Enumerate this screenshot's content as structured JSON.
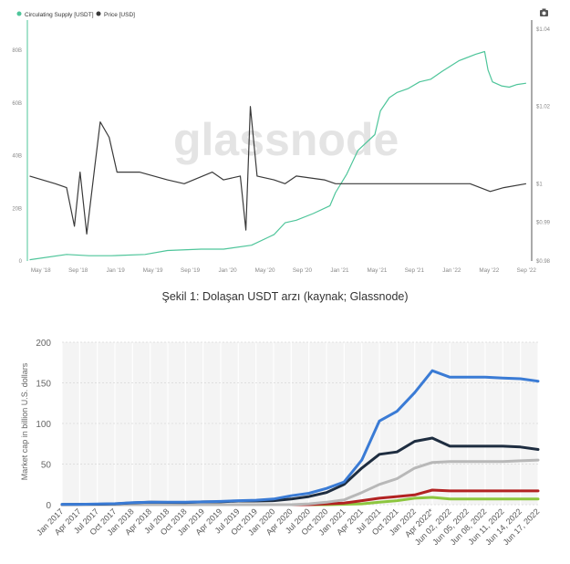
{
  "figure1": {
    "legend": [
      {
        "label": "Circulating Supply [USDT]",
        "color": "#4ec59a"
      },
      {
        "label": "Price [USD]",
        "color": "#3a3a3a"
      }
    ],
    "watermark": "glassnode",
    "camera_icon": "camera-icon",
    "caption": "Şekil 1: Dolaşan USDT arzı (kaynak; Glassnode)"
  },
  "figure2": {
    "grid_background": "#f4f4f4"
  },
  "chart_data": [
    {
      "type": "line",
      "legend_position": "top-left",
      "x_tick_labels": [
        "May '18",
        "Sep '18",
        "Jan '19",
        "May '19",
        "Sep '19",
        "Jan '20",
        "May '20",
        "Sep '20",
        "Jan '21",
        "May '21",
        "Sep '21",
        "Jan '22",
        "May '22",
        "Sep '22"
      ],
      "y_left_ticks": [
        "0",
        "20B",
        "40B",
        "60B",
        "80B"
      ],
      "y_right_ticks": [
        "$0.98",
        "$0.99",
        "$1",
        "$1.02",
        "$1.04"
      ],
      "y_left_lim": [
        0,
        88
      ],
      "y_right_lim": [
        0.98,
        1.04
      ],
      "x_lim": [
        2018.25,
        2022.75
      ],
      "grid": false,
      "series": [
        {
          "name": "Circulating Supply [USDT]",
          "axis": "left",
          "color": "#4ec59a",
          "x": [
            2018.27,
            2018.6,
            2018.8,
            2019.0,
            2019.3,
            2019.5,
            2019.8,
            2020.0,
            2020.25,
            2020.4,
            2020.45,
            2020.55,
            2020.65,
            2020.8,
            2020.95,
            2021.0,
            2021.1,
            2021.2,
            2021.35,
            2021.4,
            2021.48,
            2021.55,
            2021.65,
            2021.75,
            2021.85,
            2021.95,
            2022.1,
            2022.25,
            2022.33,
            2022.36,
            2022.4,
            2022.48,
            2022.55,
            2022.62,
            2022.7
          ],
          "y": [
            0.5,
            2.5,
            2.0,
            2.0,
            2.5,
            4.0,
            4.5,
            4.5,
            6.0,
            9.0,
            10.0,
            14.5,
            15.5,
            18.0,
            21.0,
            26.0,
            33.0,
            42.0,
            48.0,
            57.0,
            62.0,
            64.0,
            65.5,
            68.0,
            69.0,
            72.0,
            76.0,
            78.5,
            79.5,
            72.5,
            68.0,
            66.5,
            66.0,
            67.0,
            67.5
          ]
        },
        {
          "name": "Price [USD]",
          "axis": "right",
          "color": "#3a3a3a",
          "x": [
            2018.27,
            2018.5,
            2018.6,
            2018.67,
            2018.72,
            2018.78,
            2018.85,
            2018.9,
            2018.98,
            2019.05,
            2019.25,
            2019.5,
            2019.65,
            2019.9,
            2020.0,
            2020.15,
            2020.2,
            2020.24,
            2020.3,
            2020.45,
            2020.55,
            2020.65,
            2020.9,
            2021.0,
            2021.3,
            2021.5,
            2022.0,
            2022.2,
            2022.38,
            2022.5,
            2022.7
          ],
          "y": [
            1.002,
            1.0,
            0.999,
            0.989,
            1.003,
            0.987,
            1.004,
            1.016,
            1.012,
            1.003,
            1.003,
            1.001,
            1.0,
            1.003,
            1.001,
            1.002,
            0.988,
            1.02,
            1.002,
            1.001,
            1.0,
            1.002,
            1.001,
            1.0,
            1.0,
            1.0,
            1.0,
            1.0,
            0.998,
            0.999,
            1.0
          ]
        }
      ]
    },
    {
      "type": "line",
      "ylabel": "Market cap in billion U.S. dollars",
      "y_ticks": [
        0,
        50,
        100,
        150,
        200
      ],
      "ylim": [
        0,
        200
      ],
      "grid": true,
      "x_tick_labels": [
        "Jan 2017",
        "Apr 2017",
        "Jul 2017",
        "Oct 2017",
        "Jan 2018",
        "Apr 2018",
        "Jul 2018",
        "Oct 2018",
        "Jan 2019",
        "Apr 2019",
        "Jul 2019",
        "Oct 2019",
        "Jan 2020",
        "Apr 2020",
        "Jul 2020",
        "Oct 2020",
        "Jan 2021",
        "Apr 2021",
        "Jul 2021",
        "Oct 2021",
        "Jan 2022",
        "Apr 2022*",
        "Jun 02, 2022",
        "Jun 05, 2022",
        "Jun 08, 2022",
        "Jun 11, 2022",
        "Jun 14, 2022",
        "Jun 17, 2022"
      ],
      "series": [
        {
          "color": "#3a7bd5",
          "values": [
            0.4,
            0.5,
            0.8,
            1.2,
            2.5,
            3,
            3,
            3,
            3.5,
            4,
            5,
            5.5,
            7,
            11,
            14,
            20,
            28,
            55,
            103,
            115,
            138,
            165,
            157,
            157,
            157,
            156,
            155,
            152
          ]
        },
        {
          "color": "#1e2d40",
          "values": [
            0.3,
            0.4,
            0.6,
            1.0,
            2.3,
            3,
            2.8,
            2.7,
            3.5,
            3.5,
            4.5,
            4.5,
            5,
            7,
            10,
            15,
            25,
            45,
            62,
            65,
            78,
            82,
            72,
            72,
            72,
            72,
            71,
            68
          ]
        },
        {
          "color": "#b8b8b8",
          "values": [
            0,
            0,
            0,
            0,
            0,
            0,
            0,
            0,
            0,
            0,
            0,
            0,
            0,
            0,
            1,
            3,
            6,
            15,
            25,
            32,
            45,
            52,
            53,
            53,
            53,
            53,
            54,
            55
          ]
        },
        {
          "color": "#b22222",
          "values": [
            0,
            0,
            0,
            0,
            0,
            0,
            0,
            0,
            0,
            0,
            0,
            0,
            0,
            0,
            0,
            1,
            2,
            5,
            8,
            10,
            12,
            18,
            17,
            17,
            17,
            17,
            17,
            17
          ]
        },
        {
          "color": "#8dc63f",
          "values": [
            0,
            0,
            0,
            0,
            0,
            0,
            0,
            0,
            0,
            0,
            0,
            0,
            0,
            0,
            0,
            0,
            0.5,
            1,
            3,
            5,
            8,
            9,
            7,
            7,
            7,
            7,
            7,
            7
          ]
        }
      ]
    }
  ]
}
